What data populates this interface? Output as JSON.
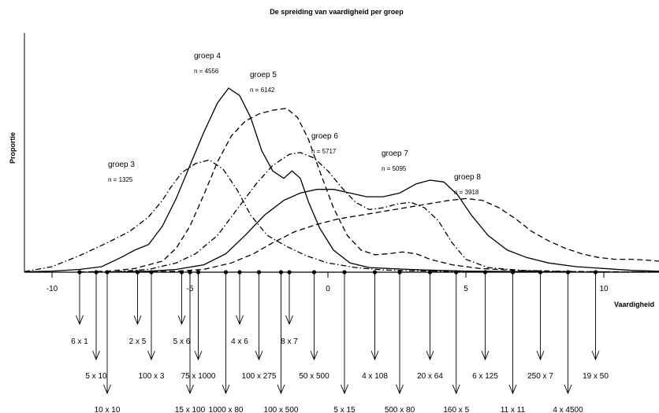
{
  "chart_data": {
    "type": "line",
    "title": "De spreiding van vaardigheid per groep",
    "xlabel": "Vaardigheid",
    "ylabel": "Proportie",
    "xlim": [
      -11.0,
      12.0
    ],
    "ylim": [
      0,
      1.0
    ],
    "x_ticks": [
      -10,
      -5,
      0,
      5,
      10
    ],
    "grid": false,
    "series": [
      {
        "name": "groep 3",
        "n_label": "n =  1325",
        "line_style": "dashdot",
        "points": [
          [
            -11,
            0.003
          ],
          [
            -10,
            0.03
          ],
          [
            -9,
            0.09
          ],
          [
            -8,
            0.16
          ],
          [
            -7.2,
            0.22
          ],
          [
            -6.5,
            0.3
          ],
          [
            -6,
            0.39
          ],
          [
            -5.7,
            0.46
          ],
          [
            -5.3,
            0.54
          ],
          [
            -4.8,
            0.59
          ],
          [
            -4.3,
            0.61
          ],
          [
            -3.8,
            0.56
          ],
          [
            -3.3,
            0.45
          ],
          [
            -2.8,
            0.31
          ],
          [
            -2.2,
            0.2
          ],
          [
            -1.5,
            0.14
          ],
          [
            -0.8,
            0.09
          ],
          [
            0,
            0.05
          ],
          [
            1,
            0.025
          ],
          [
            2,
            0.012
          ],
          [
            3,
            0.008
          ],
          [
            4,
            0.005
          ],
          [
            5,
            0.003
          ],
          [
            6,
            0.002
          ],
          [
            7,
            0.001
          ]
        ]
      },
      {
        "name": "groep 4",
        "n_label": "n =  4556",
        "line_style": "solid",
        "points": [
          [
            -11,
            0.002
          ],
          [
            -10,
            0.006
          ],
          [
            -9,
            0.015
          ],
          [
            -8.2,
            0.03
          ],
          [
            -7.5,
            0.08
          ],
          [
            -7,
            0.12
          ],
          [
            -6.5,
            0.15
          ],
          [
            -6,
            0.25
          ],
          [
            -5.5,
            0.4
          ],
          [
            -5,
            0.58
          ],
          [
            -4.5,
            0.76
          ],
          [
            -4,
            0.92
          ],
          [
            -3.6,
            1.0
          ],
          [
            -3.2,
            0.96
          ],
          [
            -2.8,
            0.84
          ],
          [
            -2.4,
            0.66
          ],
          [
            -2,
            0.55
          ],
          [
            -1.6,
            0.51
          ],
          [
            -1.3,
            0.55
          ],
          [
            -1,
            0.51
          ],
          [
            -0.7,
            0.38
          ],
          [
            -0.3,
            0.24
          ],
          [
            0.2,
            0.12
          ],
          [
            0.8,
            0.05
          ],
          [
            1.5,
            0.025
          ],
          [
            2.5,
            0.018
          ],
          [
            3.5,
            0.012
          ],
          [
            5,
            0.006
          ],
          [
            7,
            0.003
          ],
          [
            9,
            0.001
          ]
        ]
      },
      {
        "name": "groep 5",
        "n_label": "n =  6142",
        "line_style": "dashed",
        "points": [
          [
            -9,
            0.001
          ],
          [
            -8,
            0.005
          ],
          [
            -7,
            0.02
          ],
          [
            -6,
            0.06
          ],
          [
            -5.5,
            0.13
          ],
          [
            -5,
            0.25
          ],
          [
            -4.5,
            0.42
          ],
          [
            -4,
            0.6
          ],
          [
            -3.5,
            0.74
          ],
          [
            -3,
            0.82
          ],
          [
            -2.5,
            0.86
          ],
          [
            -2,
            0.88
          ],
          [
            -1.5,
            0.89
          ],
          [
            -1.1,
            0.84
          ],
          [
            -0.7,
            0.72
          ],
          [
            -0.3,
            0.55
          ],
          [
            0.2,
            0.35
          ],
          [
            0.7,
            0.2
          ],
          [
            1.2,
            0.12
          ],
          [
            1.7,
            0.095
          ],
          [
            2.2,
            0.1
          ],
          [
            2.7,
            0.11
          ],
          [
            3.2,
            0.1
          ],
          [
            3.7,
            0.07
          ],
          [
            4.5,
            0.04
          ],
          [
            5.5,
            0.02
          ],
          [
            7,
            0.008
          ],
          [
            8.5,
            0.004
          ],
          [
            10,
            0.002
          ],
          [
            12,
            0.001
          ]
        ]
      },
      {
        "name": "groep 6",
        "n_label": "n =  5717",
        "line_style": "dashdot",
        "points": [
          [
            -8.5,
            0.001
          ],
          [
            -7.5,
            0.005
          ],
          [
            -6.5,
            0.015
          ],
          [
            -5.5,
            0.05
          ],
          [
            -4.8,
            0.1
          ],
          [
            -4,
            0.2
          ],
          [
            -3.3,
            0.34
          ],
          [
            -2.6,
            0.48
          ],
          [
            -2,
            0.58
          ],
          [
            -1.4,
            0.64
          ],
          [
            -1,
            0.65
          ],
          [
            -0.5,
            0.62
          ],
          [
            0,
            0.55
          ],
          [
            0.5,
            0.46
          ],
          [
            1,
            0.38
          ],
          [
            1.5,
            0.34
          ],
          [
            2,
            0.35
          ],
          [
            2.5,
            0.37
          ],
          [
            3,
            0.38
          ],
          [
            3.5,
            0.35
          ],
          [
            4,
            0.28
          ],
          [
            4.5,
            0.16
          ],
          [
            5,
            0.07
          ],
          [
            5.8,
            0.025
          ],
          [
            7,
            0.01
          ],
          [
            8.5,
            0.005
          ],
          [
            10,
            0.002
          ],
          [
            12,
            0.001
          ]
        ]
      },
      {
        "name": "groep 7",
        "n_label": "n =  5095",
        "line_style": "solid",
        "points": [
          [
            -8,
            0.001
          ],
          [
            -6.5,
            0.005
          ],
          [
            -5.5,
            0.015
          ],
          [
            -4.5,
            0.04
          ],
          [
            -3.7,
            0.1
          ],
          [
            -3,
            0.2
          ],
          [
            -2.3,
            0.31
          ],
          [
            -1.6,
            0.39
          ],
          [
            -1,
            0.43
          ],
          [
            -0.4,
            0.45
          ],
          [
            0.2,
            0.45
          ],
          [
            0.8,
            0.43
          ],
          [
            1.4,
            0.41
          ],
          [
            2,
            0.41
          ],
          [
            2.6,
            0.43
          ],
          [
            3.2,
            0.48
          ],
          [
            3.7,
            0.5
          ],
          [
            4.2,
            0.49
          ],
          [
            4.7,
            0.42
          ],
          [
            5.2,
            0.31
          ],
          [
            5.8,
            0.2
          ],
          [
            6.5,
            0.12
          ],
          [
            7.2,
            0.08
          ],
          [
            8,
            0.05
          ],
          [
            9,
            0.03
          ],
          [
            10,
            0.02
          ],
          [
            11,
            0.01
          ],
          [
            12,
            0.005
          ]
        ]
      },
      {
        "name": "groep 8",
        "n_label": "n =  3918",
        "line_style": "dashed",
        "points": [
          [
            -7,
            0.001
          ],
          [
            -5.5,
            0.005
          ],
          [
            -4.5,
            0.015
          ],
          [
            -3.5,
            0.05
          ],
          [
            -2.7,
            0.1
          ],
          [
            -2,
            0.16
          ],
          [
            -1.2,
            0.22
          ],
          [
            -0.4,
            0.26
          ],
          [
            0.4,
            0.29
          ],
          [
            1.2,
            0.31
          ],
          [
            2,
            0.33
          ],
          [
            2.8,
            0.35
          ],
          [
            3.6,
            0.37
          ],
          [
            4.4,
            0.39
          ],
          [
            5,
            0.4
          ],
          [
            5.6,
            0.39
          ],
          [
            6.2,
            0.35
          ],
          [
            6.8,
            0.29
          ],
          [
            7.4,
            0.22
          ],
          [
            8,
            0.17
          ],
          [
            8.6,
            0.13
          ],
          [
            9.2,
            0.1
          ],
          [
            9.8,
            0.08
          ],
          [
            10.4,
            0.07
          ],
          [
            11,
            0.07
          ],
          [
            11.6,
            0.065
          ],
          [
            12,
            0.06
          ]
        ]
      }
    ],
    "annotations": [
      {
        "label": "6 x 1",
        "x": -9.0,
        "level": 0
      },
      {
        "label": "5 x 10",
        "x": -8.4,
        "level": 1
      },
      {
        "label": "10 x 10",
        "x": -8.0,
        "level": 2
      },
      {
        "label": "2 x 5",
        "x": -6.9,
        "level": 0
      },
      {
        "label": "100 x 3",
        "x": -6.4,
        "level": 1
      },
      {
        "label": "5 x 6",
        "x": -5.3,
        "level": 0
      },
      {
        "label": "15 x 100",
        "x": -5.0,
        "level": 2
      },
      {
        "label": "75 x 1000",
        "x": -4.7,
        "level": 1
      },
      {
        "label": "1000 x 80",
        "x": -3.7,
        "level": 2
      },
      {
        "label": "4 x 6",
        "x": -3.2,
        "level": 0
      },
      {
        "label": "100 x 275",
        "x": -2.5,
        "level": 1
      },
      {
        "label": "100 x 500",
        "x": -1.7,
        "level": 2
      },
      {
        "label": "8 x 7",
        "x": -1.4,
        "level": 0
      },
      {
        "label": "50 x 500",
        "x": -0.5,
        "level": 1
      },
      {
        "label": "5 x 15",
        "x": 0.6,
        "level": 2
      },
      {
        "label": "4 x 108",
        "x": 1.7,
        "level": 1
      },
      {
        "label": "500 x 80",
        "x": 2.6,
        "level": 2
      },
      {
        "label": "20 x 64",
        "x": 3.7,
        "level": 1
      },
      {
        "label": "160 x 5",
        "x": 4.65,
        "level": 2
      },
      {
        "label": "6 x 125",
        "x": 5.7,
        "level": 1
      },
      {
        "label": "11 x 11",
        "x": 6.7,
        "level": 2
      },
      {
        "label": "250 x 7",
        "x": 7.7,
        "level": 1
      },
      {
        "label": "4 x 4500",
        "x": 8.7,
        "level": 2
      },
      {
        "label": "19 x 50",
        "x": 9.7,
        "level": 1
      }
    ]
  }
}
